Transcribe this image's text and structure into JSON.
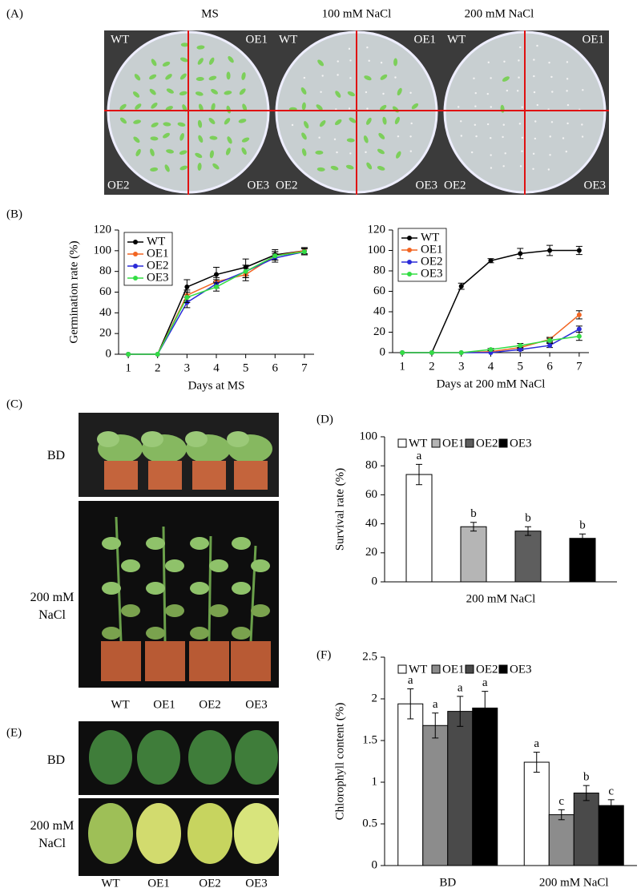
{
  "panel_labels": [
    "(A)",
    "(B)",
    "(C)",
    "(D)",
    "(E)",
    "(F)"
  ],
  "panel_a": {
    "conditions": [
      "MS",
      "100 mM NaCl",
      "200 mM NaCl"
    ],
    "quadrants": [
      "WT",
      "OE1",
      "OE2",
      "OE3"
    ]
  },
  "panel_c": {
    "rows": [
      "BD",
      "200 mM NaCl"
    ],
    "genotypes": [
      "WT",
      "OE1",
      "OE2",
      "OE3"
    ]
  },
  "panel_e": {
    "rows": [
      "BD",
      "200 mM NaCl"
    ],
    "genotypes": [
      "WT",
      "OE1",
      "OE2",
      "OE3"
    ]
  },
  "chart_data": [
    {
      "type": "line",
      "xlabel": "Days at MS",
      "ylabel": "Germination rate (%)",
      "x": [
        1,
        2,
        3,
        4,
        5,
        6,
        7
      ],
      "xlim": [
        0.67,
        7.33
      ],
      "xticks": [
        1,
        2,
        3,
        4,
        5,
        6,
        7
      ],
      "ylim": [
        0,
        120
      ],
      "yticks": [
        0,
        20,
        40,
        60,
        80,
        100,
        120
      ],
      "legend": "upper left",
      "series": [
        {
          "name": "WT",
          "color": "#000000",
          "values": [
            0,
            0,
            65,
            77,
            84,
            96,
            100
          ],
          "errors": [
            0,
            0,
            7,
            7,
            8,
            5,
            3
          ]
        },
        {
          "name": "OE1",
          "color": "#f26522",
          "values": [
            0,
            0,
            57,
            70,
            77,
            95,
            100
          ],
          "errors": [
            0,
            0,
            5,
            4,
            6,
            4,
            3
          ]
        },
        {
          "name": "OE2",
          "color": "#2b2bd8",
          "values": [
            0,
            0,
            50,
            68,
            80,
            93,
            99
          ],
          "errors": [
            0,
            0,
            5,
            4,
            6,
            4,
            3
          ]
        },
        {
          "name": "OE3",
          "color": "#33dd44",
          "values": [
            0,
            0,
            55,
            65,
            80,
            95,
            99
          ],
          "errors": [
            0,
            0,
            5,
            4,
            6,
            4,
            3
          ]
        }
      ]
    },
    {
      "type": "line",
      "xlabel": "Days at 200 mM NaCl",
      "x": [
        1,
        2,
        3,
        4,
        5,
        6,
        7
      ],
      "xlim": [
        0.67,
        7.33
      ],
      "xticks": [
        1,
        2,
        3,
        4,
        5,
        6,
        7
      ],
      "ylim": [
        0,
        120
      ],
      "yticks": [
        0,
        20,
        40,
        60,
        80,
        100,
        120
      ],
      "legend": "upper left",
      "series": [
        {
          "name": "WT",
          "color": "#000000",
          "values": [
            0,
            0,
            65,
            90,
            97,
            100,
            100
          ],
          "errors": [
            0,
            0,
            3,
            2,
            5,
            5,
            4
          ]
        },
        {
          "name": "OE1",
          "color": "#f26522",
          "values": [
            0,
            0,
            0,
            1,
            5,
            13,
            37
          ],
          "errors": [
            0,
            0,
            0,
            1,
            2,
            2,
            4
          ]
        },
        {
          "name": "OE2",
          "color": "#2b2bd8",
          "values": [
            0,
            0,
            0,
            0,
            3,
            7,
            23
          ],
          "errors": [
            0,
            0,
            0,
            0,
            1,
            2,
            3
          ]
        },
        {
          "name": "OE3",
          "color": "#33dd44",
          "values": [
            0,
            0,
            0,
            3,
            7,
            12,
            16
          ],
          "errors": [
            0,
            0,
            0,
            1,
            2,
            2,
            4
          ]
        }
      ]
    },
    {
      "type": "bar",
      "ylabel": "Survival rate (%)",
      "categories": [
        "200 mM NaCl"
      ],
      "ylim": [
        0,
        100
      ],
      "yticks": [
        0,
        20,
        40,
        60,
        80,
        100
      ],
      "legend": "top",
      "series": [
        {
          "name": "WT",
          "color": "#ffffff",
          "values": [
            74
          ],
          "errors": [
            7
          ],
          "letters": [
            "a"
          ]
        },
        {
          "name": "OE1",
          "color": "#b5b5b5",
          "values": [
            38
          ],
          "errors": [
            3
          ],
          "letters": [
            "b"
          ]
        },
        {
          "name": "OE2",
          "color": "#5e5e5e",
          "values": [
            35
          ],
          "errors": [
            3
          ],
          "letters": [
            "b"
          ]
        },
        {
          "name": "OE3",
          "color": "#000000",
          "values": [
            30
          ],
          "errors": [
            3
          ],
          "letters": [
            "b"
          ]
        }
      ]
    },
    {
      "type": "bar",
      "ylabel": "Chlorophyll content (%)",
      "categories": [
        "BD",
        "200 mM NaCl"
      ],
      "ylim": [
        0,
        2.5
      ],
      "yticks": [
        0,
        0.5,
        1,
        1.5,
        2,
        2.5
      ],
      "legend": "top",
      "series": [
        {
          "name": "WT",
          "color": "#ffffff",
          "values": [
            1.94,
            1.24
          ],
          "errors": [
            0.18,
            0.12
          ],
          "letters": [
            "a",
            "a"
          ]
        },
        {
          "name": "OE1",
          "color": "#8c8c8c",
          "values": [
            1.68,
            0.61
          ],
          "errors": [
            0.15,
            0.06
          ],
          "letters": [
            "a",
            "c"
          ]
        },
        {
          "name": "OE2",
          "color": "#4a4a4a",
          "values": [
            1.85,
            0.87
          ],
          "errors": [
            0.18,
            0.09
          ],
          "letters": [
            "a",
            "b"
          ]
        },
        {
          "name": "OE3",
          "color": "#000000",
          "values": [
            1.89,
            0.72
          ],
          "errors": [
            0.2,
            0.07
          ],
          "letters": [
            "a",
            "c"
          ]
        }
      ]
    }
  ]
}
